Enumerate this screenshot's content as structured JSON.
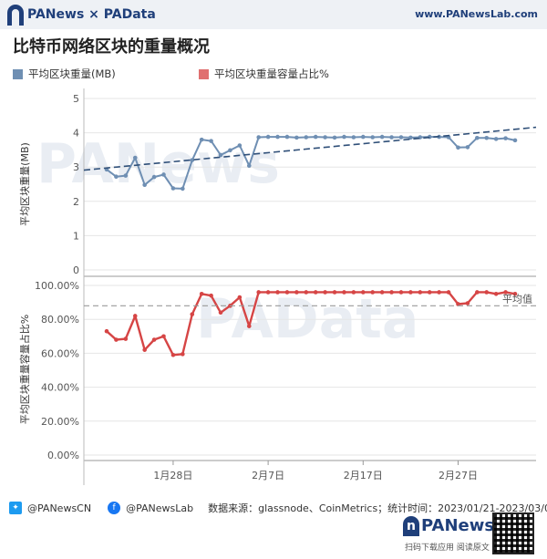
{
  "header": {
    "brand": "PANews × PAData",
    "site": "www.PANewsLab.com"
  },
  "title": "比特币网络区块的重量概况",
  "legend": [
    {
      "label": "平均区块重量(MB)",
      "color": "#6f8fb3"
    },
    {
      "label": "平均区块重量容量占比%",
      "color": "#e06a6a"
    }
  ],
  "watermarks": {
    "top": "PANews",
    "bottom": "PAData"
  },
  "chart_data": {
    "type": "line",
    "x_ticks": [
      "1月28日",
      "2月7日",
      "2月17日",
      "2月27日"
    ],
    "x": [
      "2023-01-21",
      "2023-01-22",
      "2023-01-23",
      "2023-01-24",
      "2023-01-25",
      "2023-01-26",
      "2023-01-27",
      "2023-01-28",
      "2023-01-29",
      "2023-01-30",
      "2023-01-31",
      "2023-02-01",
      "2023-02-02",
      "2023-02-03",
      "2023-02-04",
      "2023-02-05",
      "2023-02-06",
      "2023-02-07",
      "2023-02-08",
      "2023-02-09",
      "2023-02-10",
      "2023-02-11",
      "2023-02-12",
      "2023-02-13",
      "2023-02-14",
      "2023-02-15",
      "2023-02-16",
      "2023-02-17",
      "2023-02-18",
      "2023-02-19",
      "2023-02-20",
      "2023-02-21",
      "2023-02-22",
      "2023-02-23",
      "2023-02-24",
      "2023-02-25",
      "2023-02-26",
      "2023-02-27",
      "2023-02-28",
      "2023-03-01",
      "2023-03-02",
      "2023-03-03",
      "2023-03-04",
      "2023-03-05"
    ],
    "panels": [
      {
        "ylabel": "平均区块重量(MB)",
        "ylim": [
          0,
          5
        ],
        "y_ticks": [
          "0",
          "1",
          "2",
          "3",
          "4",
          "5"
        ],
        "series": [
          {
            "name": "平均区块重量(MB)",
            "color": "#6f8fb3",
            "values": [
              2.93,
              2.72,
              2.75,
              3.27,
              2.48,
              2.71,
              2.78,
              2.38,
              2.37,
              3.2,
              3.8,
              3.76,
              3.35,
              3.49,
              3.63,
              3.04,
              3.87,
              3.88,
              3.88,
              3.88,
              3.86,
              3.87,
              3.88,
              3.87,
              3.86,
              3.88,
              3.87,
              3.88,
              3.87,
              3.88,
              3.87,
              3.87,
              3.86,
              3.87,
              3.88,
              3.88,
              3.87,
              3.57,
              3.58,
              3.85,
              3.85,
              3.82,
              3.84,
              3.78
            ]
          },
          {
            "name": "trend",
            "color": "#2f4f78",
            "dashed": true,
            "values": [
              2.91,
              4.16
            ]
          }
        ]
      },
      {
        "ylabel": "平均区块重量容量占比%",
        "ylim": [
          0,
          100
        ],
        "y_ticks": [
          "0.00%",
          "20.00%",
          "40.00%",
          "60.00%",
          "80.00%",
          "100.00%"
        ],
        "mean_label": "平均值",
        "mean_value": 88,
        "series": [
          {
            "name": "平均区块重量容量占比%",
            "color": "#d64545",
            "values": [
              73,
              68,
              68.5,
              82,
              62,
              68,
              70,
              59,
              59.5,
              83,
              95,
              94,
              84,
              88,
              93,
              76,
              96,
              96,
              96,
              96,
              96,
              96,
              96,
              96,
              96,
              96,
              96,
              96,
              96,
              96,
              96,
              96,
              96,
              96,
              96,
              96,
              96,
              89,
              89.5,
              96,
              96,
              95,
              96,
              95
            ]
          }
        ]
      }
    ]
  },
  "footer": {
    "twitter": "@PANewsCN",
    "facebook": "@PANewsLab",
    "source": "数据来源：glassnode、CoinMetrics；统计时间：2023/01/21-2023/03/05",
    "logo": "PANews",
    "qr_caption": "扫码下载应用 阅读原文"
  }
}
